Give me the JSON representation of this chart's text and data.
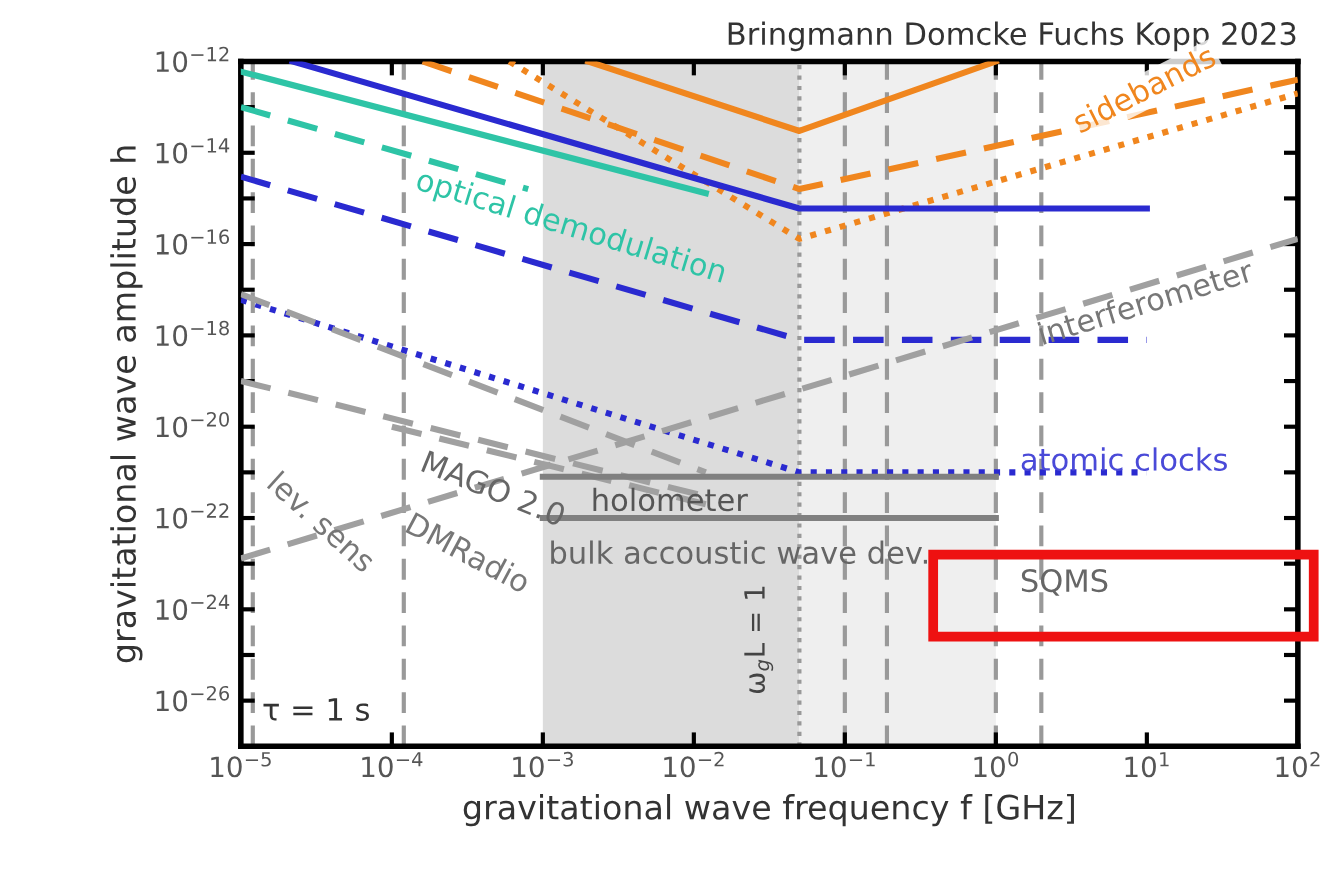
{
  "chart_data": {
    "type": "line",
    "title": "Bringmann Domcke Fuchs Kopp 2023",
    "xlabel": "gravitational wave frequency f [GHz]",
    "ylabel": "gravitational wave amplitude h",
    "log": "xy",
    "xlim": [
      1e-05,
      100
    ],
    "ylim": [
      1e-27,
      1e-12
    ],
    "xticks": [
      {
        "value": 1e-05,
        "label": "10$^{−5}$"
      },
      {
        "value": 0.0001,
        "label": "10$^{−4}$"
      },
      {
        "value": 0.001,
        "label": "10$^{−3}$"
      },
      {
        "value": 0.01,
        "label": "10$^{−2}$"
      },
      {
        "value": 0.1,
        "label": "10$^{−1}$"
      },
      {
        "value": 1,
        "label": "10$^{0}$"
      },
      {
        "value": 10,
        "label": "10$^{1}$"
      },
      {
        "value": 100,
        "label": "10$^{2}$"
      }
    ],
    "yticks": [
      {
        "value": 1e-26,
        "label": "10$^{−26}$"
      },
      {
        "value": 1e-25,
        "label": null
      },
      {
        "value": 1e-24,
        "label": "10$^{−24}$"
      },
      {
        "value": 1e-23,
        "label": null
      },
      {
        "value": 1e-22,
        "label": "10$^{−22}$"
      },
      {
        "value": 1e-21,
        "label": null
      },
      {
        "value": 1e-20,
        "label": "10$^{−20}$"
      },
      {
        "value": 1e-19,
        "label": null
      },
      {
        "value": 1e-18,
        "label": "10$^{−18}$"
      },
      {
        "value": 1e-17,
        "label": null
      },
      {
        "value": 1e-16,
        "label": "10$^{−16}$"
      },
      {
        "value": 1e-15,
        "label": null
      },
      {
        "value": 1e-14,
        "label": "10$^{−14}$"
      },
      {
        "value": 1e-13,
        "label": null
      },
      {
        "value": 1e-12,
        "label": "10$^{−12}$"
      }
    ],
    "grid": false,
    "series": [
      {
        "color": "#f0861e",
        "line_style": "solid",
        "x": [
          0.002,
          0.05,
          1
        ],
        "values": [
          1e-12,
          3e-14,
          1e-12
        ]
      },
      {
        "color": "#f0861e",
        "line_style": "dashed",
        "x": [
          0.00016,
          0.05,
          100
        ],
        "values": [
          1e-12,
          1.6e-15,
          4e-13
        ]
      },
      {
        "color": "#f0861e",
        "line_style": "dotted",
        "x": [
          0.0006,
          0.05,
          100
        ],
        "values": [
          1e-12,
          1.3e-16,
          2e-13
        ]
      },
      {
        "color": "#2a2ad0",
        "line_style": "solid",
        "x": [
          2.2e-05,
          0.05,
          10
        ],
        "values": [
          1e-12,
          6e-16,
          6e-16
        ]
      },
      {
        "color": "#2a2ad0",
        "line_style": "dashed",
        "x": [
          1e-05,
          0.05,
          10
        ],
        "values": [
          3e-15,
          8e-19,
          8e-19
        ]
      },
      {
        "color": "#2a2ad0",
        "line_style": "dotted",
        "x": [
          1e-05,
          0.05,
          10
        ],
        "values": [
          6e-18,
          1e-21,
          1e-21
        ]
      },
      {
        "color": "#2ec4a6",
        "line_style": "solid",
        "x": [
          1e-05,
          0.012
        ],
        "values": [
          6e-13,
          1.3e-15
        ]
      },
      {
        "color": "#2ec4a6",
        "line_style": "dashed",
        "x": [
          1e-05,
          0.0008
        ],
        "values": [
          1e-13,
          1.6e-15
        ]
      },
      {
        "color": "#a0a0a0",
        "line_style": "dashed",
        "x": [
          1e-05,
          100
        ],
        "values": [
          1.3e-23,
          1.3e-16
        ]
      },
      {
        "color": "#a0a0a0",
        "line_style": "dashed",
        "x": [
          1e-05,
          0.012
        ],
        "values": [
          8e-18,
          1e-21
        ]
      },
      {
        "color": "#a0a0a0",
        "line_style": "dashed",
        "x": [
          1e-05,
          0.012
        ],
        "values": [
          1e-19,
          3e-22
        ]
      },
      {
        "color": "#a0a0a0",
        "line_style": "dashed",
        "x": [
          0.0001,
          0.012
        ],
        "values": [
          1e-20,
          2e-22
        ]
      },
      {
        "color": "#808080",
        "line_style": "solid",
        "x": [
          0.001,
          1
        ],
        "values": [
          8e-22,
          8e-22
        ]
      },
      {
        "color": "#808080",
        "line_style": "solid",
        "x": [
          0.001,
          1
        ],
        "values": [
          1e-22,
          1e-22
        ]
      }
    ],
    "bands": [
      {
        "axis": "x",
        "from": 0.001,
        "to": 0.05,
        "color": "#dcdcdc"
      },
      {
        "axis": "x",
        "from": 0.05,
        "to": 1,
        "color": "#efefef"
      }
    ],
    "ref_lines": [
      {
        "axis": "x",
        "value": 1.2e-05,
        "line_style": "dashed",
        "color": "#999999"
      },
      {
        "axis": "x",
        "value": 0.00012,
        "line_style": "dashed",
        "color": "#999999"
      },
      {
        "axis": "x",
        "value": 0.05,
        "line_style": "dotted",
        "color": "#999999"
      },
      {
        "axis": "x",
        "value": 0.1,
        "line_style": "dashed",
        "color": "#999999"
      },
      {
        "axis": "x",
        "value": 0.19,
        "line_style": "dashed",
        "color": "#999999"
      },
      {
        "axis": "x",
        "value": 1,
        "line_style": "dashed",
        "color": "#999999"
      },
      {
        "axis": "x",
        "value": 2,
        "line_style": "dashed",
        "color": "#999999"
      }
    ],
    "annotations": [
      "optical demodulation",
      "sidebands",
      "interferometer",
      "atomic clocks",
      "MAGO 2.0",
      "lev. sens",
      "DMRadio",
      "holometer",
      "bulk accoustic wave dev.",
      "SQMS",
      "τ = 1 s",
      "ω$_{g}$L = 1"
    ]
  }
}
